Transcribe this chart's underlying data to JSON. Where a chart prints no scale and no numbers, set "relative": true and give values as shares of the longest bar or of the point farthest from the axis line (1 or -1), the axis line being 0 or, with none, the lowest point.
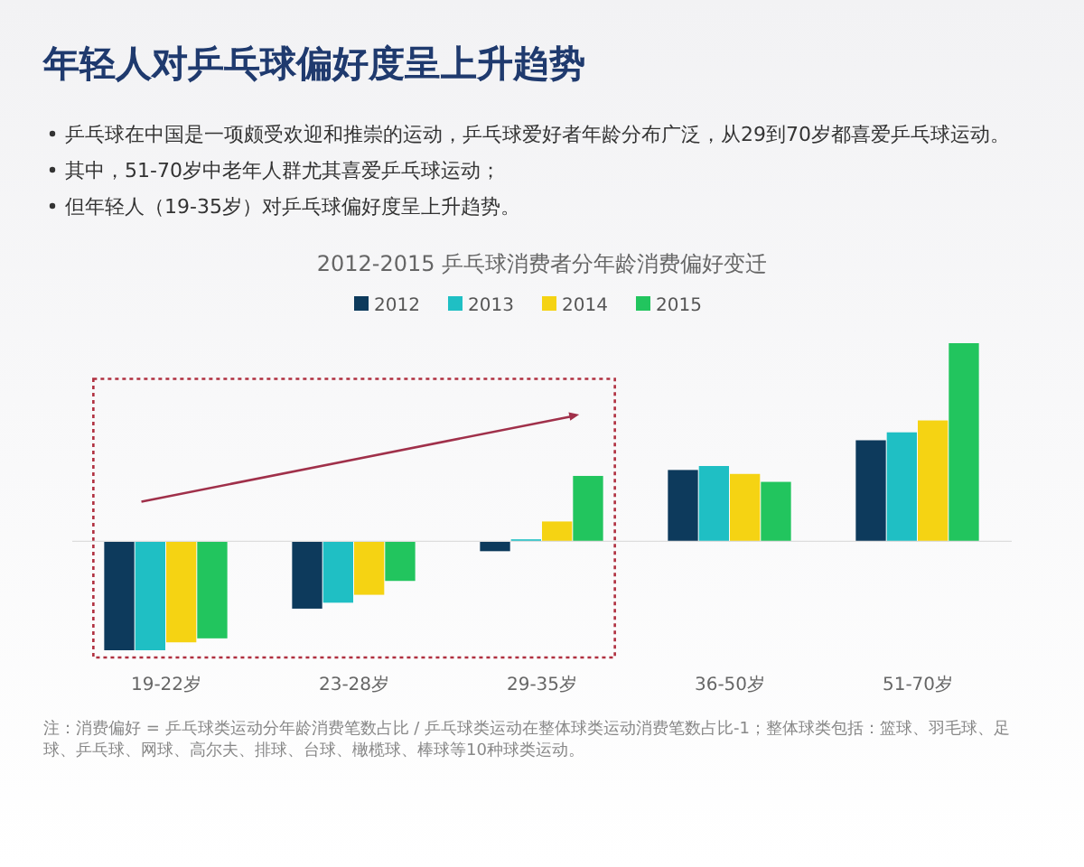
{
  "chart_data": {
    "type": "bar",
    "title": "年轻人对乒乓球偏好度呈上升趋势",
    "subtitle": "2012-2015 乒乓球消费者分年龄消费偏好变迁",
    "annotations": [
      "乒乓球在中国是一项颇受欢迎和推崇的运动，乒乓球爱好者年龄分布广泛，从29到70岁都喜爱乒乓球运动。",
      "其中，51-70岁中老年人群尤其喜爱乒乓球运动；",
      "但年轻人（19-35岁）对乒乓球偏好度呈上升趋势。",
      "注：消费偏好 = 乒乓球类运动分年龄消费笔数占比 / 乒乓球类运动在整体球类运动消费笔数占比-1；整体球类包括：篮球、羽毛球、足球、乒乓球、网球、高尔夫、排球、台球、橄榄球、棒球等10种球类运动。"
    ],
    "categories": [
      "19-22岁",
      "23-28岁",
      "29-35岁",
      "36-50岁",
      "51-70岁"
    ],
    "relative": true,
    "legend": "top",
    "series": [
      {
        "name": "2012",
        "color": "#0d3a5c",
        "values": [
          -0.55,
          -0.34,
          -0.05,
          0.36,
          0.51
        ]
      },
      {
        "name": "2013",
        "color": "#1fbfc4",
        "values": [
          -0.55,
          -0.31,
          0.01,
          0.38,
          0.55
        ]
      },
      {
        "name": "2014",
        "color": "#f5d313",
        "values": [
          -0.51,
          -0.27,
          0.1,
          0.34,
          0.61
        ]
      },
      {
        "name": "2015",
        "color": "#22c55e",
        "values": [
          -0.49,
          -0.2,
          0.33,
          0.3,
          1
        ]
      }
    ]
  }
}
